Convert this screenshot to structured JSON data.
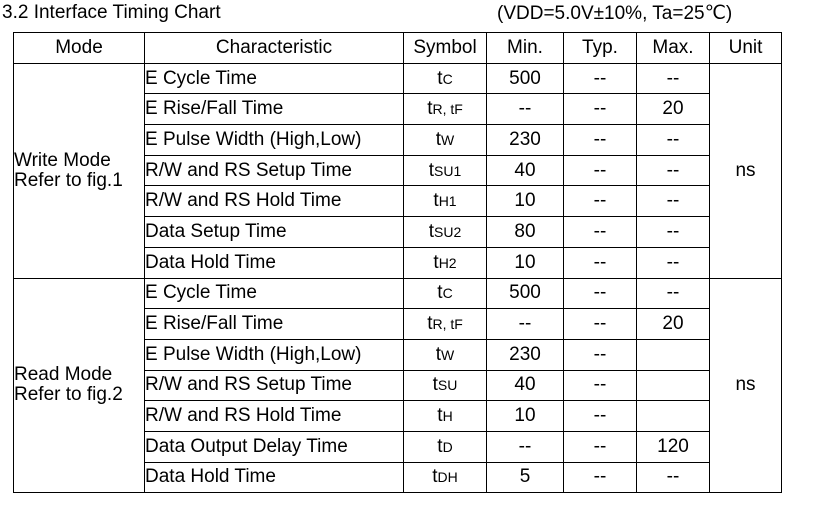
{
  "header": {
    "title": "3.2 Interface Timing Chart",
    "conditions": "(VDD=5.0V±10%, Ta=25℃)"
  },
  "columns": [
    "Mode",
    "Characteristic",
    "Symbol",
    "Min.",
    "Typ.",
    "Max.",
    "Unit"
  ],
  "groups": [
    {
      "mode_line1": "Write Mode",
      "mode_line2": "Refer to fig.1",
      "unit": "ns",
      "rows": [
        {
          "characteristic": "E Cycle Time",
          "symbol": "t",
          "symbol_sub": "C",
          "min": "500",
          "typ": "--",
          "max": "--"
        },
        {
          "characteristic": "E Rise/Fall Time",
          "symbol": "t",
          "symbol_sub": "R, tF",
          "min": "--",
          "typ": "--",
          "max": "20"
        },
        {
          "characteristic": "E Pulse Width (High,Low)",
          "symbol": "t",
          "symbol_sub": "W",
          "min": "230",
          "typ": "--",
          "max": "--"
        },
        {
          "characteristic": "R/W and RS Setup Time",
          "symbol": "t",
          "symbol_sub": "SU1",
          "min": "40",
          "typ": "--",
          "max": "--"
        },
        {
          "characteristic": "R/W and RS Hold Time",
          "symbol": "t",
          "symbol_sub": "H1",
          "min": "10",
          "typ": "--",
          "max": "--"
        },
        {
          "characteristic": "Data Setup Time",
          "symbol": "t",
          "symbol_sub": "SU2",
          "min": "80",
          "typ": "--",
          "max": "--"
        },
        {
          "characteristic": "Data Hold Time",
          "symbol": "t",
          "symbol_sub": "H2",
          "min": "10",
          "typ": "--",
          "max": "--"
        }
      ]
    },
    {
      "mode_line1": "Read Mode",
      "mode_line2": "Refer to fig.2",
      "unit": "ns",
      "rows": [
        {
          "characteristic": "E Cycle Time",
          "symbol": "t",
          "symbol_sub": "C",
          "min": "500",
          "typ": "--",
          "max": "--"
        },
        {
          "characteristic": "E Rise/Fall Time",
          "symbol": "t",
          "symbol_sub": "R, tF",
          "min": "--",
          "typ": "--",
          "max": "20"
        },
        {
          "characteristic": "E Pulse Width (High,Low)",
          "symbol": "t",
          "symbol_sub": "W",
          "min": "230",
          "typ": "--",
          "max": ""
        },
        {
          "characteristic": "R/W and RS Setup Time",
          "symbol": "t",
          "symbol_sub": "SU",
          "min": "40",
          "typ": "--",
          "max": ""
        },
        {
          "characteristic": "R/W and RS Hold Time",
          "symbol": "t",
          "symbol_sub": "H",
          "min": "10",
          "typ": "--",
          "max": ""
        },
        {
          "characteristic": "Data Output Delay Time",
          "symbol": "t",
          "symbol_sub": "D",
          "min": "--",
          "typ": "--",
          "max": "120"
        },
        {
          "characteristic": "Data Hold Time",
          "symbol": "t",
          "symbol_sub": "DH",
          "min": "5",
          "typ": "--",
          "max": "--"
        }
      ]
    }
  ]
}
